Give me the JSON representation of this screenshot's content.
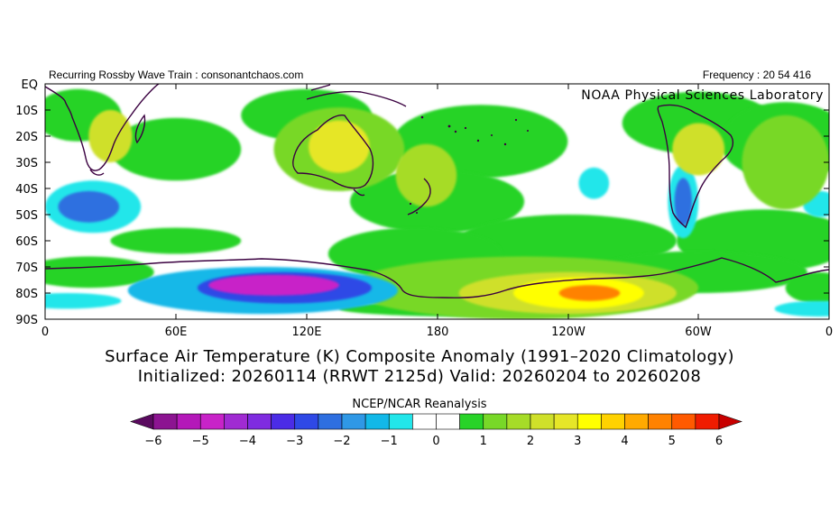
{
  "header": {
    "left_text": "Recurring Rossby Wave Train : consonantchaos.com",
    "right_text": "Frequency : 20 54 416"
  },
  "watermark": "NOAA Physical Sciences Laboratory",
  "title": {
    "line1": "Surface Air Temperature (K) Composite Anomaly (1991–2020 Climatology)",
    "line2": "Initialized: 20260114 (RRWT 2125d) Valid: 20260204 to 20260208"
  },
  "colorbar": {
    "title": "NCEP/NCAR Reanalysis",
    "tick_labels": [
      "−6",
      "−5",
      "−4",
      "−3",
      "−2",
      "−1",
      "0",
      "1",
      "2",
      "3",
      "4",
      "5",
      "6"
    ],
    "tick_values": [
      -6,
      -5,
      -4,
      -3,
      -2,
      -1,
      0,
      1,
      2,
      3,
      4,
      5,
      6
    ],
    "levels": [
      -6,
      -5.5,
      -5,
      -4.5,
      -4,
      -3.5,
      -3,
      -2.5,
      -2,
      -1.5,
      -1,
      -0.5,
      0,
      0.5,
      1,
      1.5,
      2,
      2.5,
      3,
      3.5,
      4,
      4.5,
      5,
      5.5,
      6
    ],
    "colors": [
      "#5a0a5f",
      "#8c1491",
      "#b418b9",
      "#c823c8",
      "#a02bd2",
      "#7f2ce0",
      "#4b2ce6",
      "#2f49e6",
      "#2e6fe0",
      "#2f98e6",
      "#12b8e8",
      "#22e6ea",
      "#ffffff",
      "#ffffff",
      "#28d328",
      "#78d828",
      "#a6dc28",
      "#cfe02a",
      "#e6e628",
      "#ffff00",
      "#ffd200",
      "#ffaa00",
      "#ff8200",
      "#ff5a00",
      "#f01c00",
      "#c80000"
    ]
  },
  "axes": {
    "y_ticks": [
      "EQ",
      "10S",
      "20S",
      "30S",
      "40S",
      "50S",
      "60S",
      "70S",
      "80S",
      "90S"
    ],
    "x_ticks": [
      "0",
      "60E",
      "120E",
      "180",
      "120W",
      "60W",
      "0"
    ]
  },
  "map_data": {
    "projection": "equirectangular",
    "lon_range": [
      0,
      360
    ],
    "lat_range": [
      -90,
      0
    ],
    "field": "surface air temperature anomaly (K)",
    "anomalies": [
      {
        "lon": 105,
        "lat": -77,
        "value": -5,
        "rx": 30,
        "ry": 4
      },
      {
        "lon": 110,
        "lat": -78,
        "value": -3,
        "rx": 40,
        "ry": 6
      },
      {
        "lon": 100,
        "lat": -79,
        "value": -1.5,
        "rx": 62,
        "ry": 9
      },
      {
        "lon": 20,
        "lat": -47,
        "value": -2.5,
        "rx": 14,
        "ry": 6
      },
      {
        "lon": 22,
        "lat": -47,
        "value": -1,
        "rx": 22,
        "ry": 10
      },
      {
        "lon": 293,
        "lat": -45,
        "value": -2.5,
        "rx": 4,
        "ry": 9
      },
      {
        "lon": 293,
        "lat": -45,
        "value": -1,
        "rx": 7,
        "ry": 14
      },
      {
        "lon": 252,
        "lat": -38,
        "value": -1,
        "rx": 7,
        "ry": 6
      },
      {
        "lon": 356,
        "lat": -46,
        "value": -1,
        "rx": 8,
        "ry": 5
      },
      {
        "lon": 250,
        "lat": -80,
        "value": 4.5,
        "rx": 14,
        "ry": 3
      },
      {
        "lon": 245,
        "lat": -80,
        "value": 3,
        "rx": 30,
        "ry": 6
      },
      {
        "lon": 240,
        "lat": -80,
        "value": 2,
        "rx": 50,
        "ry": 8
      },
      {
        "lon": 220,
        "lat": -78,
        "value": 1,
        "rx": 80,
        "ry": 12
      },
      {
        "lon": 135,
        "lat": -24,
        "value": 2.5,
        "rx": 14,
        "ry": 10
      },
      {
        "lon": 135,
        "lat": -25,
        "value": 1,
        "rx": 30,
        "ry": 16
      },
      {
        "lon": 175,
        "lat": -35,
        "value": 1.5,
        "rx": 14,
        "ry": 12
      },
      {
        "lon": 30,
        "lat": -20,
        "value": 2,
        "rx": 10,
        "ry": 10
      },
      {
        "lon": 300,
        "lat": -25,
        "value": 2,
        "rx": 12,
        "ry": 10
      },
      {
        "lon": 340,
        "lat": -30,
        "value": 1,
        "rx": 20,
        "ry": 18
      }
    ]
  }
}
